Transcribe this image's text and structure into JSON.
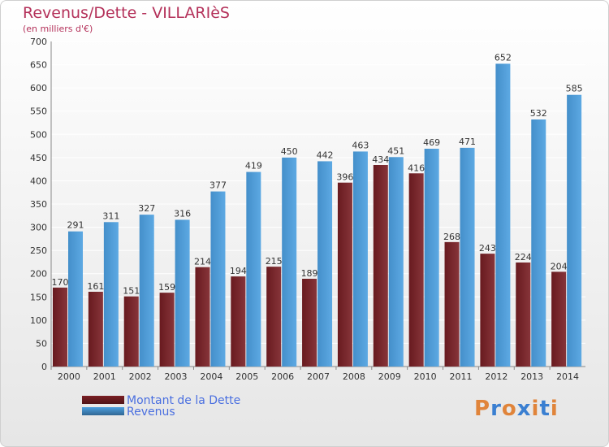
{
  "title": "Revenus/Dette - VILLARIèS",
  "subtitle": "(en milliers d'€)",
  "legend": [
    {
      "label": "Montant de la Dette",
      "color": "#7a1f24"
    },
    {
      "label": "Revenus",
      "color": "#4b9fe0"
    }
  ],
  "logo": {
    "text": "Proxiti",
    "letters": [
      "P",
      "r",
      "o",
      "x",
      "i",
      "t",
      "i"
    ],
    "colors": [
      "#e0843a",
      "#3a7fd1",
      "#e0843a",
      "#3a7fd1",
      "#e0843a",
      "#3a7fd1",
      "#e0843a"
    ]
  },
  "colors": {
    "debt": "#7a1f24",
    "revenue": "#4b9fe0",
    "title": "#b4315a"
  },
  "chart_data": {
    "type": "bar",
    "title": "Revenus/Dette - VILLARIèS",
    "subtitle": "(en milliers d'€)",
    "categories": [
      "2000",
      "2001",
      "2002",
      "2003",
      "2004",
      "2005",
      "2006",
      "2007",
      "2008",
      "2009",
      "2010",
      "2011",
      "2012",
      "2013",
      "2014"
    ],
    "series": [
      {
        "name": "Montant de la Dette",
        "values": [
          170,
          161,
          151,
          159,
          214,
          194,
          215,
          189,
          396,
          434,
          416,
          268,
          243,
          224,
          204
        ]
      },
      {
        "name": "Revenus",
        "values": [
          291,
          311,
          327,
          316,
          377,
          419,
          450,
          442,
          463,
          451,
          469,
          471,
          652,
          532,
          585
        ]
      }
    ],
    "ylim": [
      0,
      700
    ],
    "yticks": [
      0,
      50,
      100,
      150,
      200,
      250,
      300,
      350,
      400,
      450,
      500,
      550,
      600,
      650,
      700
    ],
    "grid": true,
    "legend_position": "bottom-left"
  }
}
